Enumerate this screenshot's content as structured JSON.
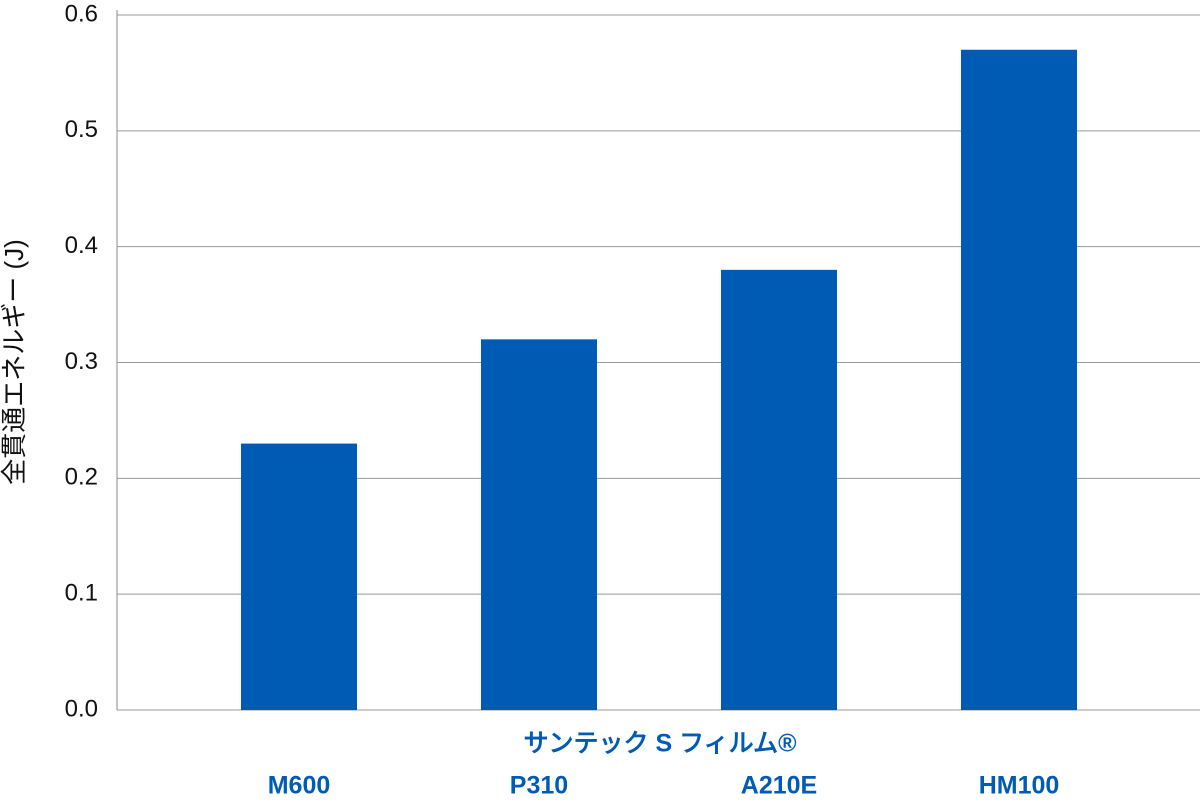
{
  "chart_data": {
    "type": "bar",
    "y_label": "全貫通エネルギー (J)",
    "x_label": "サンテック S フィルム®",
    "categories": [
      "M600",
      "P310",
      "A210E",
      "HM100"
    ],
    "values": [
      0.23,
      0.32,
      0.38,
      0.57
    ],
    "color": "#005bb5",
    "ylim": [
      0,
      0.6
    ],
    "yticks": [
      {
        "value": 0,
        "label": "0.0"
      },
      0.1,
      0.2,
      0.3,
      0.4,
      0.5,
      0.6
    ],
    "grid": true
  }
}
